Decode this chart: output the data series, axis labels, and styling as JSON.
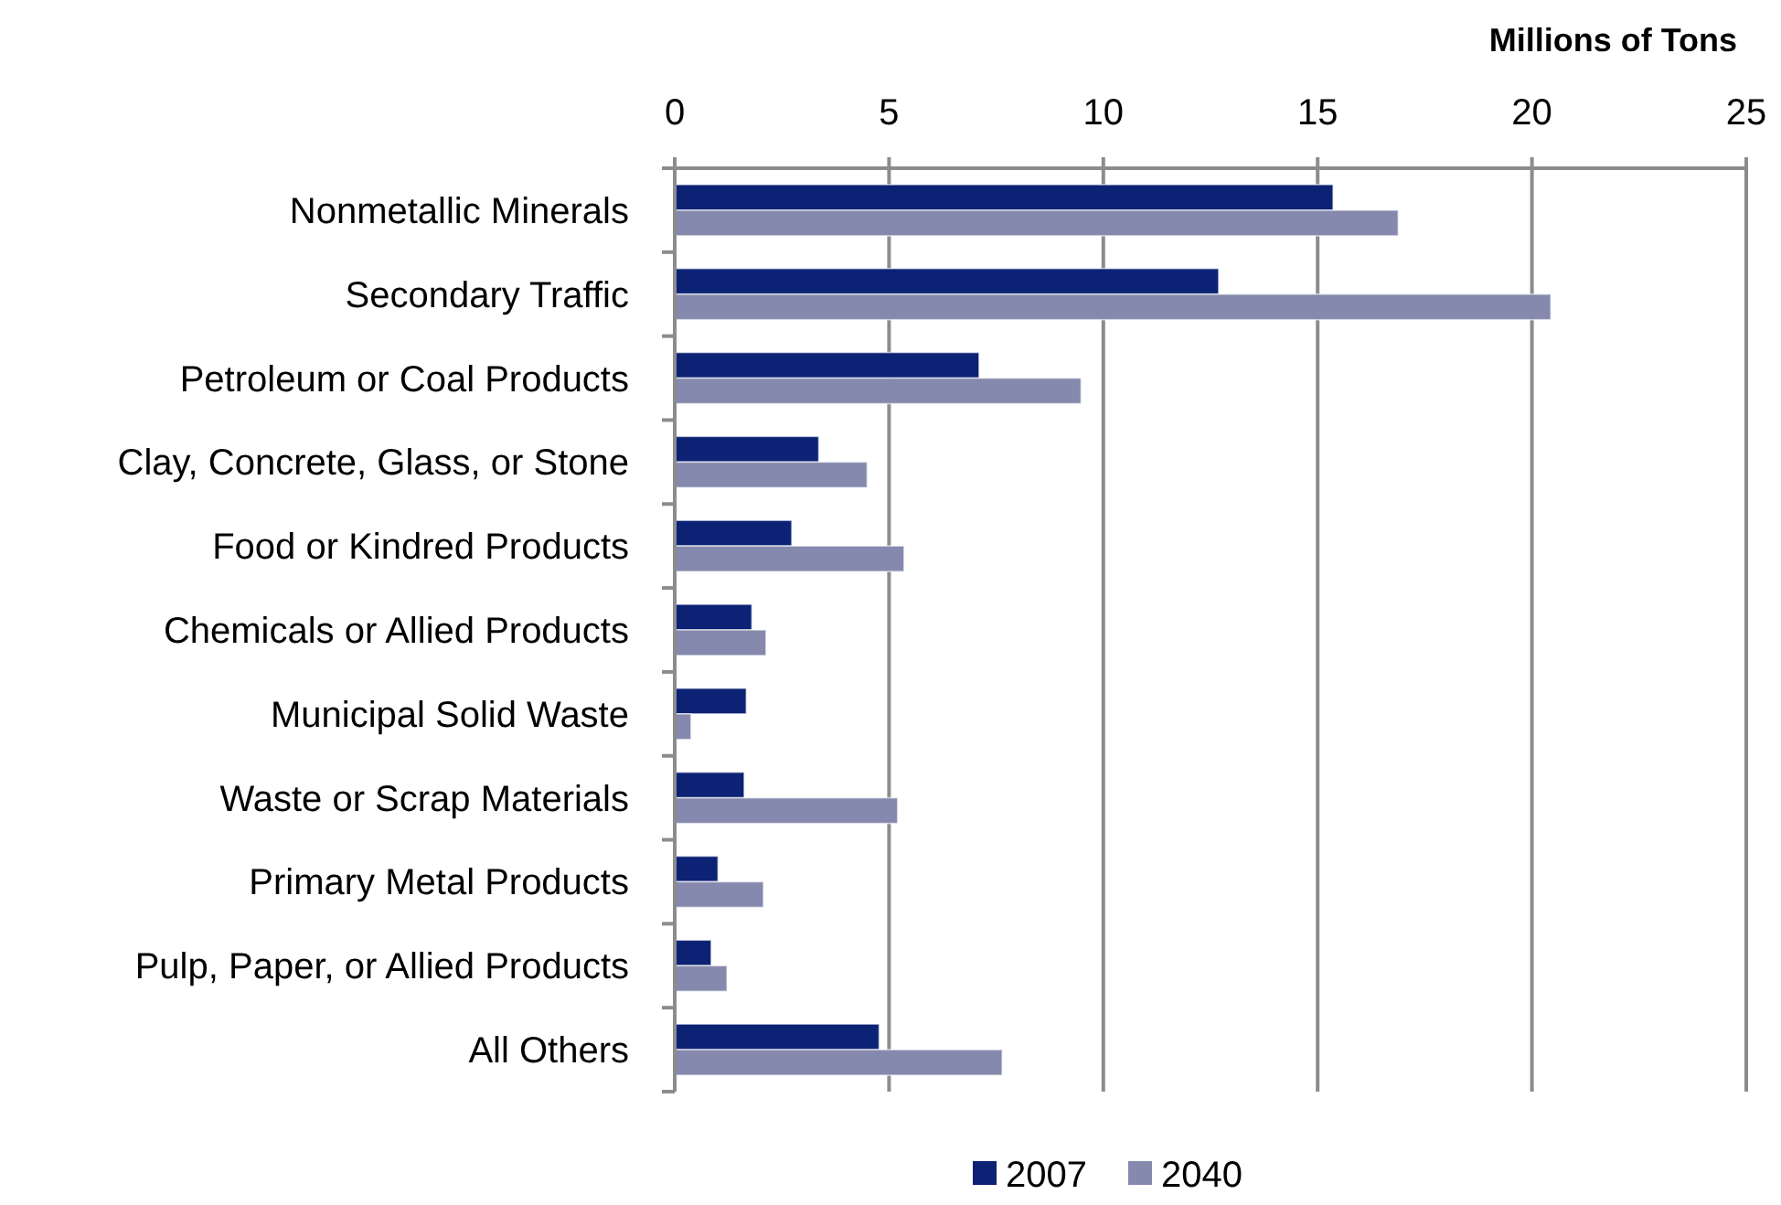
{
  "chart_data": {
    "type": "bar",
    "orientation": "horizontal",
    "xlabel": "Millions of Tons",
    "categories": [
      "Nonmetallic Minerals",
      "Secondary Traffic",
      "Petroleum or Coal Products",
      "Clay, Concrete, Glass, or Stone",
      "Food or Kindred Products",
      "Chemicals or Allied Products",
      "Municipal Solid Waste",
      "Waste or Scrap Materials",
      "Primary Metal Products",
      "Pulp, Paper, or Allied Products",
      "All Others"
    ],
    "series": [
      {
        "name": "2007",
        "color": "#0c2274",
        "values": [
          15.36,
          12.69,
          7.1,
          3.36,
          2.73,
          1.8,
          1.67,
          1.62,
          1.01,
          0.85,
          4.77
        ]
      },
      {
        "name": "2040",
        "color": "#8589ad",
        "values": [
          16.88,
          20.44,
          9.48,
          4.49,
          5.35,
          2.13,
          0.38,
          5.2,
          2.07,
          1.22,
          7.64
        ]
      }
    ],
    "xlim": [
      0,
      25
    ],
    "xticks": [
      0,
      5,
      10,
      15,
      20,
      25
    ],
    "grid": "x",
    "legend": "bottom"
  }
}
